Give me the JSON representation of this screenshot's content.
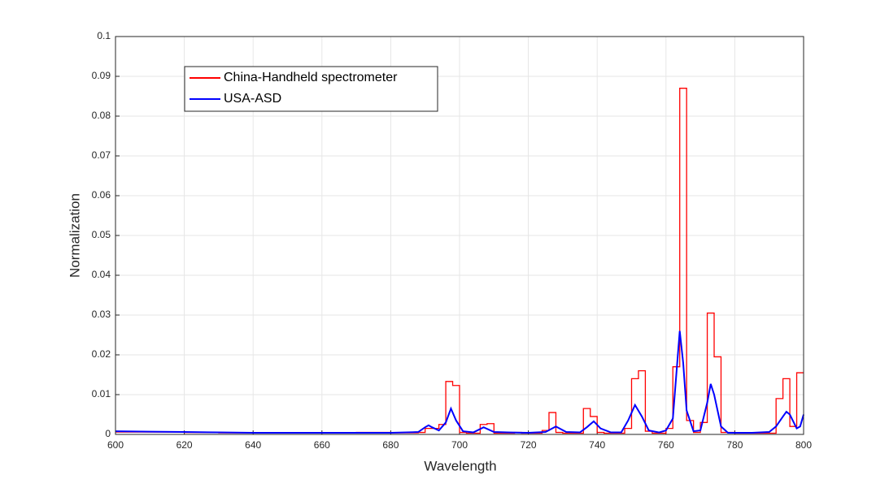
{
  "chart_data": {
    "type": "line",
    "xlabel": "Wavelength",
    "ylabel": "Normalization",
    "xlim": [
      600,
      800
    ],
    "xticks": [
      600,
      620,
      640,
      660,
      680,
      700,
      720,
      740,
      760,
      780,
      800
    ],
    "ylim": [
      0,
      0.1
    ],
    "yticks": [
      0,
      0.01,
      0.02,
      0.03,
      0.04,
      0.05,
      0.06,
      0.07,
      0.08,
      0.09,
      0.1
    ],
    "grid": true,
    "legend": "upper left",
    "series": [
      {
        "name": "China-Handheld spectrometer",
        "color": "#ff0000",
        "step": true,
        "x": [
          600,
          610,
          620,
          630,
          640,
          650,
          660,
          670,
          680,
          688,
          690,
          692,
          694,
          696,
          698,
          700,
          702,
          706,
          708,
          710,
          712,
          716,
          718,
          720,
          724,
          726,
          728,
          730,
          734,
          736,
          738,
          740,
          742,
          746,
          748,
          750,
          752,
          754,
          756,
          760,
          762,
          764,
          766,
          768,
          770,
          772,
          774,
          776,
          780,
          790,
          792,
          794,
          796,
          798,
          800
        ],
        "values": [
          0.0006,
          0.0006,
          0.0005,
          0.0004,
          0.0004,
          0.0004,
          0.0004,
          0.0005,
          0.0004,
          0.0005,
          0.0015,
          0.0015,
          0.0025,
          0.0133,
          0.0123,
          0.0005,
          0.0003,
          0.0025,
          0.0027,
          0.0003,
          0.0003,
          0.0005,
          0.0003,
          0.0003,
          0.001,
          0.0055,
          0.0005,
          0.0003,
          0.0003,
          0.0065,
          0.0045,
          0.0005,
          0.0003,
          0.0003,
          0.0015,
          0.014,
          0.016,
          0.0008,
          0.0003,
          0.0015,
          0.017,
          0.087,
          0.0035,
          0.0005,
          0.003,
          0.0305,
          0.0195,
          0.0005,
          0.0003,
          0.0003,
          0.009,
          0.014,
          0.002,
          0.0155,
          0.0155
        ]
      },
      {
        "name": "USA-ASD",
        "color": "#0000ff",
        "step": false,
        "x": [
          600,
          610,
          620,
          630,
          640,
          660,
          680,
          688,
          690,
          691,
          692,
          694,
          696,
          697.5,
          699,
          701,
          704,
          707,
          710,
          714,
          720,
          725,
          728,
          731,
          735,
          737,
          739,
          741,
          744,
          747,
          749,
          751,
          753,
          755,
          758,
          760,
          762,
          763,
          764,
          765,
          766,
          768,
          770,
          772,
          773,
          774,
          776,
          778,
          785,
          790,
          792,
          794,
          795,
          796,
          798,
          799,
          800
        ],
        "values": [
          0.0008,
          0.0007,
          0.0006,
          0.0005,
          0.0004,
          0.0004,
          0.0004,
          0.0006,
          0.0018,
          0.0023,
          0.0018,
          0.001,
          0.003,
          0.0065,
          0.0035,
          0.0008,
          0.0005,
          0.0018,
          0.0006,
          0.0005,
          0.0004,
          0.0006,
          0.002,
          0.0006,
          0.0005,
          0.0018,
          0.0033,
          0.0015,
          0.0005,
          0.0005,
          0.0035,
          0.0074,
          0.0045,
          0.001,
          0.0005,
          0.001,
          0.004,
          0.015,
          0.026,
          0.018,
          0.006,
          0.0008,
          0.001,
          0.008,
          0.0127,
          0.01,
          0.002,
          0.0004,
          0.0004,
          0.0006,
          0.002,
          0.0045,
          0.0057,
          0.005,
          0.0015,
          0.002,
          0.005
        ]
      }
    ]
  }
}
